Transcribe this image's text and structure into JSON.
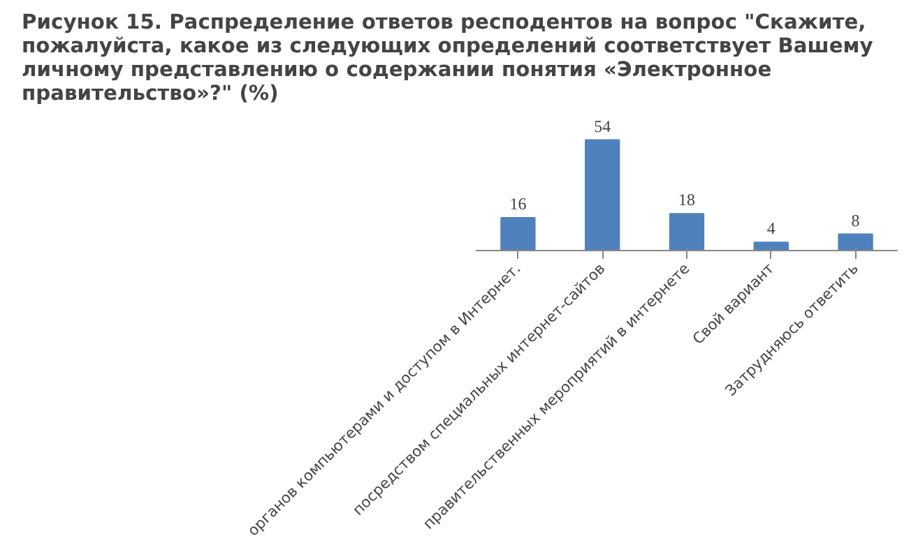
{
  "chart_data": {
    "type": "bar",
    "title": "Рисунок 15. Распределение ответов респодентов на вопрос \"Скажите, пожалуйста, какое из следующих определений соответствует Вашему личному представлению о содержании понятия «Электронное правительство»?\" (%)",
    "categories": [
      "органов компьютерами и доступом в Интернет.",
      "посредством специальных интернет-сайтов",
      "правительственных мероприятий в интернете",
      "Свой вариант",
      "Затрудняюсь ответить"
    ],
    "values": [
      16,
      54,
      18,
      4,
      8
    ],
    "color": "#4f81bd",
    "data_labels": true
  }
}
